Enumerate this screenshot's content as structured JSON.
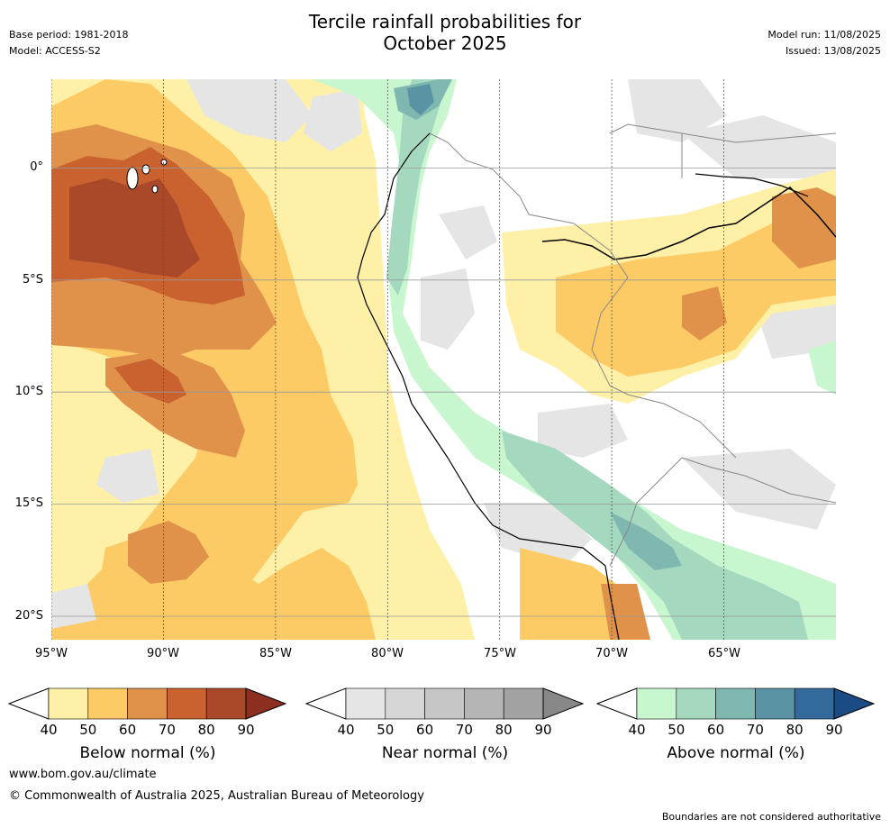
{
  "title": {
    "line1": "Tercile rainfall probabilities for",
    "line2": "October 2025"
  },
  "meta_left": {
    "base_period": "Base period: 1981-2018",
    "model": "Model: ACCESS-S2"
  },
  "meta_right": {
    "model_run": "Model run: 11/08/2025",
    "issued": "Issued: 13/08/2025"
  },
  "map": {
    "lat_labels": [
      "0°",
      "5°S",
      "10°S",
      "15°S",
      "20°S"
    ],
    "lon_labels": [
      "95°W",
      "90°W",
      "85°W",
      "80°W",
      "75°W",
      "70°W",
      "65°W"
    ],
    "lon_range": [
      -95,
      -60
    ],
    "lat_range": [
      -21,
      4
    ]
  },
  "legends": {
    "below": {
      "title": "Below normal (%)",
      "ticks": [
        "40",
        "50",
        "60",
        "70",
        "80",
        "90"
      ],
      "colors": [
        "#fff0a8",
        "#fdcb66",
        "#e0924a",
        "#c9622f",
        "#a9492a",
        "#8c2e20"
      ]
    },
    "near": {
      "title": "Near normal (%)",
      "ticks": [
        "40",
        "50",
        "60",
        "70",
        "80",
        "90"
      ],
      "colors": [
        "#e5e5e5",
        "#d6d6d6",
        "#c6c6c6",
        "#b5b5b5",
        "#a2a2a2",
        "#888888"
      ]
    },
    "above": {
      "title": "Above normal (%)",
      "ticks": [
        "40",
        "50",
        "60",
        "70",
        "80",
        "90"
      ],
      "colors": [
        "#c8f7cf",
        "#a4d9bf",
        "#7fb8b0",
        "#5a93a3",
        "#336a9b",
        "#1a4b84"
      ]
    }
  },
  "footer": {
    "url": "www.bom.gov.au/climate",
    "copyright": "© Commonwealth of Australia 2025, Australian Bureau of Meteorology",
    "note": "Boundaries are not considered authoritative"
  }
}
